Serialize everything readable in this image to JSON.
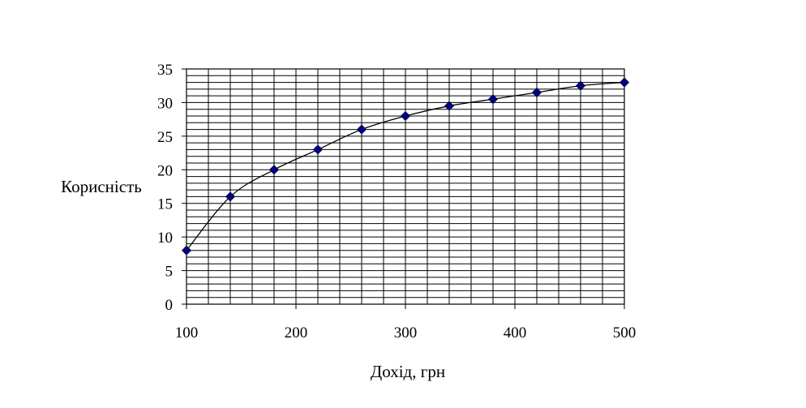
{
  "chart_data": {
    "type": "line",
    "xlabel": "Дохід, грн",
    "ylabel": "Корисність",
    "xlim": [
      100,
      500
    ],
    "ylim": [
      0,
      35
    ],
    "x_ticks": [
      100,
      200,
      300,
      400,
      500
    ],
    "y_ticks": [
      0,
      5,
      10,
      15,
      20,
      25,
      30,
      35
    ],
    "grid": true,
    "legend": "none",
    "series": [
      {
        "color": "#000080",
        "line_color": "#000000",
        "marker": "diamond",
        "x": [
          100,
          140,
          180,
          220,
          260,
          300,
          340,
          380,
          420,
          460,
          500
        ],
        "y": [
          8,
          16,
          20,
          23,
          26,
          28,
          29.5,
          30.5,
          31.5,
          32.5,
          33
        ]
      }
    ]
  }
}
